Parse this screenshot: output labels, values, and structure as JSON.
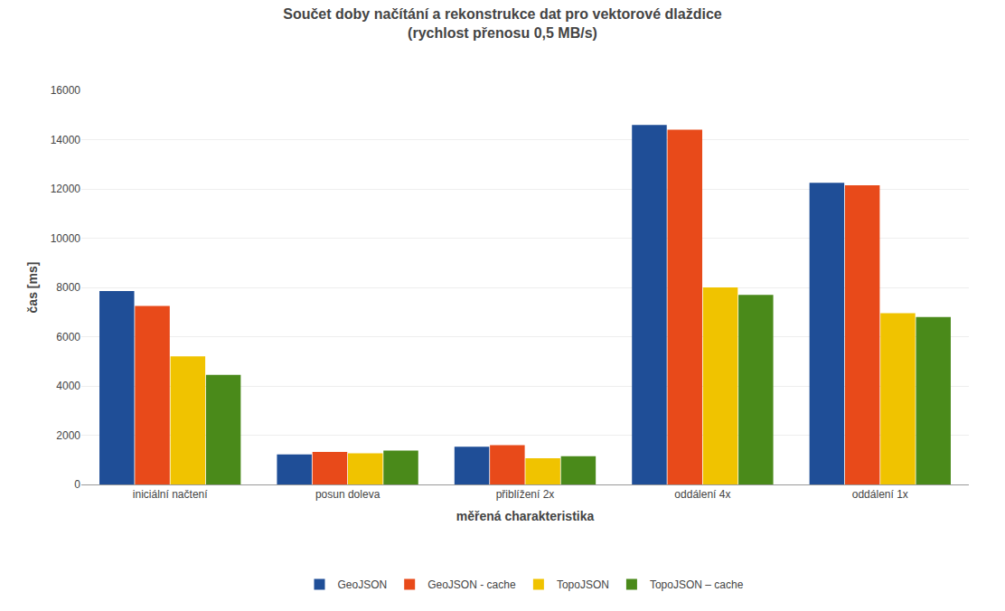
{
  "chart_data": {
    "type": "bar",
    "title": "Součet doby načítání a rekonstrukce dat pro vektorové dlaždice",
    "subtitle": "(rychlost přenosu 0,5 MB/s)",
    "x_label": "měřená charakteristika",
    "y_label": "čas [ms]",
    "categories": [
      "iniciální načtení",
      "posun doleva",
      "přiblížení 2x",
      "oddálení 4x",
      "oddálení 1x"
    ],
    "series": [
      {
        "name": "GeoJSON",
        "color": "#1F4E97",
        "values": [
          7850,
          1220,
          1530,
          14600,
          12250
        ]
      },
      {
        "name": "GeoJSON - cache",
        "color": "#E84A1A",
        "values": [
          7250,
          1320,
          1600,
          14400,
          12150
        ]
      },
      {
        "name": "TopoJSON",
        "color": "#F0C300",
        "values": [
          5200,
          1270,
          1060,
          8000,
          6950
        ]
      },
      {
        "name": "TopoJSON – cache",
        "color": "#4A8A1A",
        "values": [
          4450,
          1380,
          1150,
          7700,
          6800
        ]
      }
    ],
    "ylim": [
      0,
      16000
    ],
    "yticks": [
      0,
      2000,
      4000,
      6000,
      8000,
      10000,
      12000,
      14000,
      16000
    ],
    "grid": true,
    "legend": "bottom"
  }
}
